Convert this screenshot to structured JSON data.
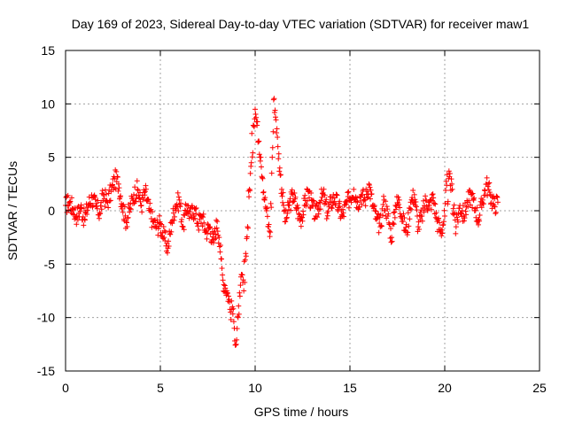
{
  "chart_data": {
    "type": "scatter",
    "title": "Day 169 of 2023, Sidereal Day-to-day VTEC variation (SDTVAR) for receiver maw1",
    "xlabel": "GPS time / hours",
    "ylabel": "SDTVAR / TECUs",
    "xlim": [
      0,
      25
    ],
    "ylim": [
      -15,
      15
    ],
    "xticks": [
      0,
      5,
      10,
      15,
      20,
      25
    ],
    "xtick_labels": [
      "0",
      "5",
      "10",
      "15",
      "20",
      "25"
    ],
    "yticks": [
      -15,
      -10,
      -5,
      0,
      5,
      10,
      15
    ],
    "ytick_labels": [
      "-15",
      "-10",
      "-5",
      "0",
      "5",
      "10",
      "15"
    ],
    "grid": true,
    "marker": "+",
    "color": "#ff0000",
    "series": [
      {
        "name": "SDTVAR",
        "x": [
          0.0,
          0.2,
          0.4,
          0.6,
          0.8,
          1.0,
          1.2,
          1.4,
          1.6,
          1.8,
          2.0,
          2.2,
          2.4,
          2.6,
          2.8,
          3.0,
          3.2,
          3.4,
          3.6,
          3.8,
          4.0,
          4.2,
          4.4,
          4.6,
          4.8,
          5.0,
          5.2,
          5.4,
          5.6,
          5.8,
          6.0,
          6.2,
          6.4,
          6.6,
          6.8,
          7.0,
          7.2,
          7.4,
          7.6,
          7.8,
          8.0,
          8.1,
          8.2,
          8.3,
          8.4,
          8.5,
          8.6,
          8.7,
          8.8,
          8.9,
          9.0,
          9.1,
          9.2,
          9.3,
          9.4,
          9.5,
          9.6,
          9.7,
          9.8,
          9.9,
          10.0,
          10.1,
          10.2,
          10.3,
          10.4,
          10.5,
          10.6,
          10.7,
          10.8,
          10.9,
          11.0,
          11.1,
          11.2,
          11.3,
          11.4,
          11.5,
          11.6,
          11.8,
          12.0,
          12.2,
          12.4,
          12.6,
          12.8,
          13.0,
          13.2,
          13.4,
          13.6,
          13.8,
          14.0,
          14.2,
          14.4,
          14.6,
          14.8,
          15.0,
          15.2,
          15.4,
          15.6,
          15.8,
          16.0,
          16.2,
          16.4,
          16.6,
          16.8,
          17.0,
          17.2,
          17.4,
          17.6,
          17.8,
          18.0,
          18.2,
          18.4,
          18.6,
          18.8,
          19.0,
          19.2,
          19.4,
          19.6,
          19.8,
          20.0,
          20.2,
          20.4,
          20.6,
          20.8,
          21.0,
          21.2,
          21.4,
          21.6,
          21.8,
          22.0,
          22.2,
          22.4,
          22.6,
          22.8
        ],
        "y": [
          0.5,
          0.8,
          0.2,
          -0.5,
          0.3,
          -0.8,
          0.6,
          1.2,
          0.4,
          -0.2,
          1.5,
          0.8,
          1.8,
          3.0,
          2.5,
          0.5,
          -1.0,
          0.2,
          1.5,
          2.0,
          0.5,
          1.8,
          0.2,
          -1.0,
          -1.5,
          -1.2,
          -2.5,
          -3.5,
          -1.0,
          0.5,
          1.0,
          -1.5,
          0.5,
          -0.5,
          0.2,
          -1.2,
          -0.5,
          -2.0,
          -1.5,
          -3.0,
          -1.0,
          -2.5,
          -4.5,
          -6.5,
          -7.0,
          -7.5,
          -8.0,
          -9.5,
          -9.0,
          -11.0,
          -12.5,
          -10.0,
          -8.0,
          -6.0,
          -7.5,
          -4.0,
          -1.5,
          2.0,
          4.5,
          8.0,
          9.5,
          8.0,
          6.5,
          5.0,
          3.0,
          1.0,
          0.0,
          -1.5,
          -2.0,
          5.0,
          10.5,
          8.5,
          6.0,
          4.0,
          2.0,
          0.5,
          -1.0,
          0.5,
          1.5,
          0.2,
          -0.8,
          0.5,
          1.8,
          0.5,
          -0.5,
          0.8,
          1.5,
          -0.2,
          0.8,
          1.2,
          0.3,
          -0.5,
          0.6,
          1.2,
          2.0,
          0.8,
          1.5,
          1.0,
          2.5,
          0.5,
          -0.8,
          -1.5,
          1.0,
          -0.5,
          -2.5,
          0.5,
          1.0,
          -1.0,
          -2.0,
          0.8,
          1.5,
          -1.5,
          -0.5,
          1.0,
          0.5,
          1.2,
          -1.0,
          -2.0,
          -0.5,
          3.0,
          2.0,
          -1.5,
          0.5,
          -0.5,
          0.8,
          1.5,
          0.2,
          -0.8,
          1.0,
          2.5,
          1.5,
          0.5,
          0.8
        ]
      }
    ]
  }
}
